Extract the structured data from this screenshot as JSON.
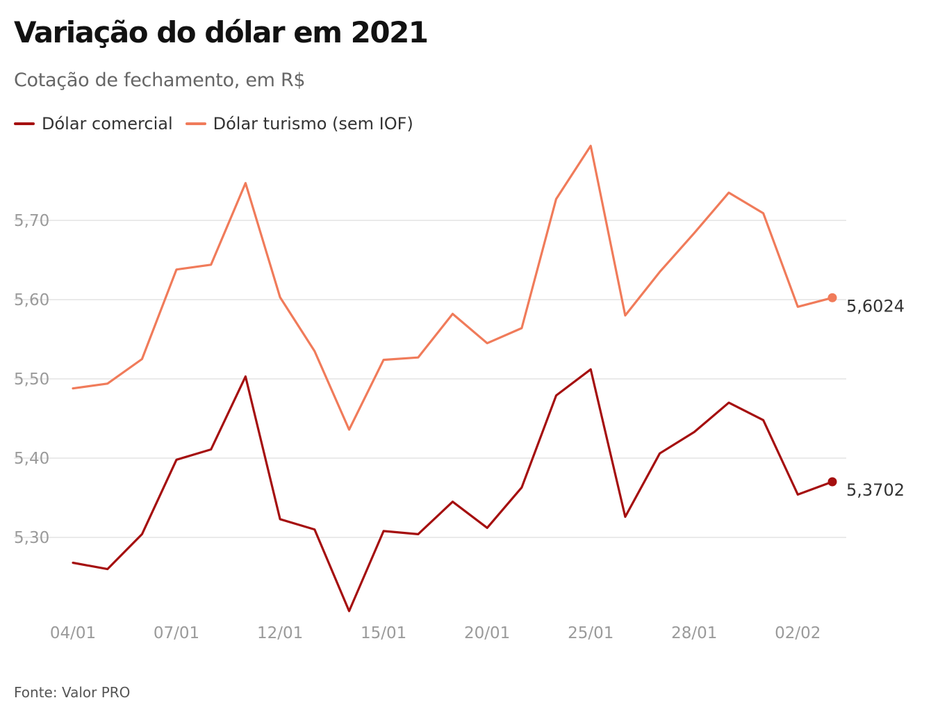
{
  "title": "Variação do dólar em 2021",
  "subtitle": "Cotação de fechamento, em R$",
  "source": "Fonte: Valor PRO",
  "colors": {
    "comercial": "#a50f0f",
    "turismo": "#f07b5a",
    "grid": "#e4e4e4"
  },
  "chart_data": {
    "type": "line",
    "title": "Variação do dólar em 2021",
    "subtitle": "Cotação de fechamento, em R$",
    "ylim": [
      5.2,
      5.8
    ],
    "yticks": [
      5.3,
      5.4,
      5.5,
      5.6,
      5.7
    ],
    "ytick_labels": [
      "5,30",
      "5,40",
      "5,50",
      "5,60",
      "5,70"
    ],
    "x": [
      "04/01",
      "05/01",
      "06/01",
      "07/01",
      "08/01",
      "11/01",
      "12/01",
      "13/01",
      "14/01",
      "15/01",
      "18/01",
      "19/01",
      "20/01",
      "21/01",
      "22/01",
      "25/01",
      "26/01",
      "27/01",
      "28/01",
      "29/01",
      "01/02",
      "02/02",
      "03/02"
    ],
    "xtick_labels": [
      {
        "index": 0,
        "label": "04/01"
      },
      {
        "index": 3,
        "label": "07/01"
      },
      {
        "index": 6,
        "label": "12/01"
      },
      {
        "index": 9,
        "label": "15/01"
      },
      {
        "index": 12,
        "label": "20/01"
      },
      {
        "index": 15,
        "label": "25/01"
      },
      {
        "index": 18,
        "label": "28/01"
      },
      {
        "index": 21,
        "label": "02/02"
      }
    ],
    "grid": true,
    "legend_position": "top-left",
    "series": [
      {
        "key": "comercial",
        "name": "Dólar comercial",
        "values": [
          5.268,
          5.26,
          5.304,
          5.398,
          5.411,
          5.503,
          5.323,
          5.31,
          5.207,
          5.308,
          5.304,
          5.345,
          5.312,
          5.363,
          5.479,
          5.512,
          5.326,
          5.406,
          5.433,
          5.47,
          5.448,
          5.354,
          5.3702
        ],
        "end_label": "5,3702"
      },
      {
        "key": "turismo",
        "name": "Dólar turismo (sem IOF)",
        "values": [
          5.488,
          5.494,
          5.525,
          5.638,
          5.644,
          5.747,
          5.603,
          5.535,
          5.436,
          5.524,
          5.527,
          5.582,
          5.545,
          5.564,
          5.727,
          5.794,
          5.58,
          5.635,
          5.684,
          5.735,
          5.709,
          5.591,
          5.6024
        ],
        "end_label": "5,6024"
      }
    ]
  }
}
